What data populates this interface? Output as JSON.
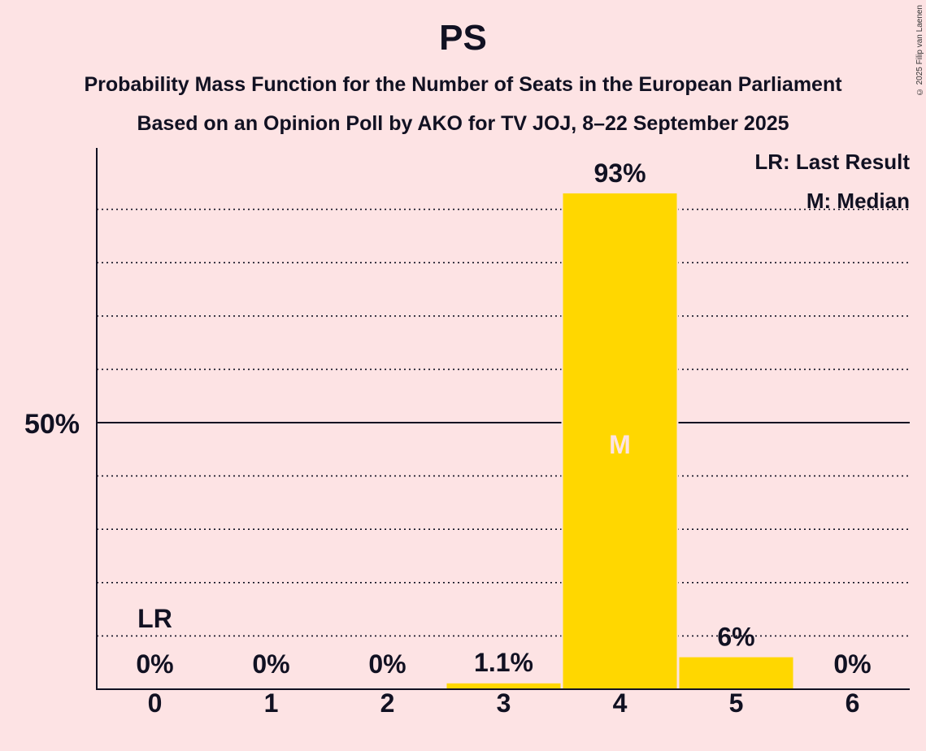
{
  "chart_data": {
    "type": "bar",
    "title": "PS",
    "subtitle": "Probability Mass Function for the Number of Seats in the European Parliament",
    "subtitle2": "Based on an Opinion Poll by AKO for TV JOJ, 8–22 September 2025",
    "categories": [
      "0",
      "1",
      "2",
      "3",
      "4",
      "5",
      "6"
    ],
    "values": [
      0,
      0,
      0,
      1.1,
      93,
      6,
      0
    ],
    "value_labels": [
      "0%",
      "0%",
      "0%",
      "1.1%",
      "93%",
      "6%",
      "0%"
    ],
    "ylim": [
      0,
      100
    ],
    "major_tick": 50,
    "major_tick_label": "50%",
    "minor_gridline_step": 10,
    "bar_color": "#FFD700",
    "last_result_index": 0,
    "last_result_marker": "LR",
    "median_index": 4,
    "median_marker": "M",
    "legend": [
      "LR: Last Result",
      "M: Median"
    ],
    "legend_position": "top-right"
  },
  "copyright": "© 2025 Filip van Laenen"
}
